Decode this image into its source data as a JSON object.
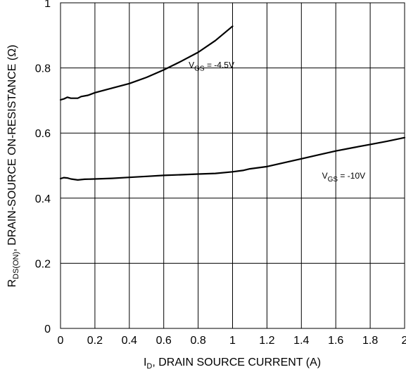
{
  "chart_data": {
    "type": "line",
    "xlabel": {
      "main": "I",
      "sub": "D",
      "rest": ", DRAIN SOURCE CURRENT (A)"
    },
    "ylabel": {
      "main": "R",
      "sub": "DS(ON)",
      "rest": ", DRAIN-SOURCE ON-RESISTANCE (Ω)"
    },
    "xlim": [
      0,
      2
    ],
    "ylim": [
      0,
      1
    ],
    "xticks": [
      0,
      0.2,
      0.4,
      0.6,
      0.8,
      1,
      1.2,
      1.4,
      1.6,
      1.8,
      2
    ],
    "xtick_labels": [
      "0",
      "0.2",
      "0.4",
      "0.6",
      "0.8",
      "1",
      "1.2",
      "1.4",
      "1.6",
      "1.8",
      "2"
    ],
    "yticks": [
      0,
      0.2,
      0.4,
      0.6,
      0.8,
      1
    ],
    "ytick_labels": [
      "0",
      "0.2",
      "0.4",
      "0.6",
      "0.8",
      "1"
    ],
    "grid": true,
    "series": [
      {
        "label": {
          "main": "V",
          "sub": "GS",
          "rest": " = -4.5V"
        },
        "label_at": [
          0.745,
          0.8
        ],
        "x": [
          0,
          0.02,
          0.04,
          0.06,
          0.1,
          0.12,
          0.16,
          0.2,
          0.3,
          0.4,
          0.5,
          0.6,
          0.7,
          0.8,
          0.9,
          1.0
        ],
        "y": [
          0.702,
          0.705,
          0.71,
          0.707,
          0.707,
          0.712,
          0.716,
          0.724,
          0.738,
          0.752,
          0.771,
          0.794,
          0.82,
          0.848,
          0.884,
          0.928
        ]
      },
      {
        "label": {
          "main": "V",
          "sub": "GS",
          "rest": " = -10V"
        },
        "label_at": [
          1.52,
          0.46
        ],
        "x": [
          0,
          0.02,
          0.04,
          0.06,
          0.1,
          0.14,
          0.2,
          0.3,
          0.4,
          0.5,
          0.6,
          0.7,
          0.8,
          0.9,
          1.0,
          1.06,
          1.1,
          1.2,
          1.3,
          1.4,
          1.5,
          1.6,
          1.7,
          1.8,
          1.9,
          2.0
        ],
        "y": [
          0.46,
          0.463,
          0.462,
          0.459,
          0.456,
          0.458,
          0.459,
          0.461,
          0.464,
          0.467,
          0.47,
          0.472,
          0.474,
          0.476,
          0.481,
          0.485,
          0.49,
          0.497,
          0.509,
          0.521,
          0.533,
          0.545,
          0.555,
          0.565,
          0.575,
          0.586
        ]
      }
    ]
  }
}
